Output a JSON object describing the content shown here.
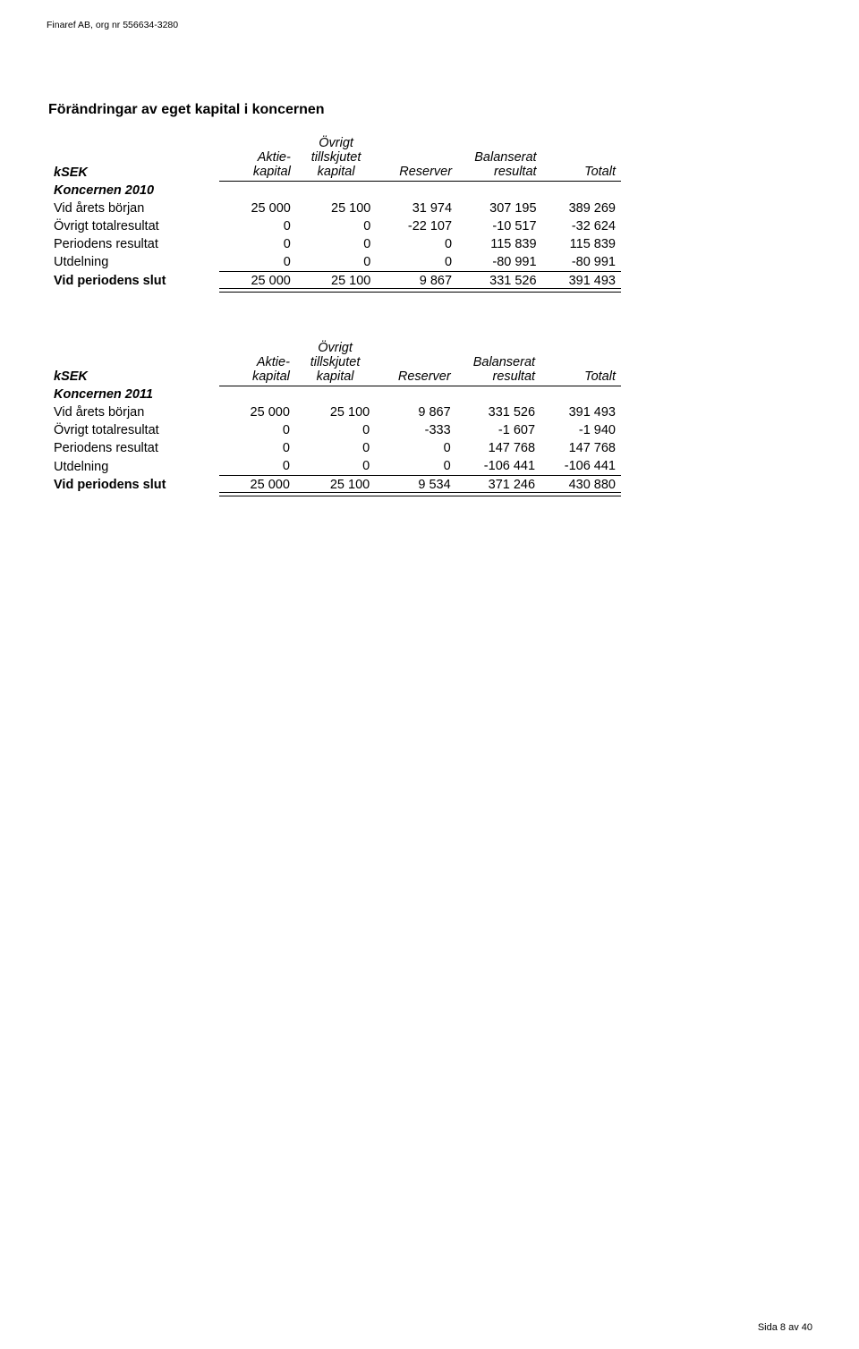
{
  "header": "Finaref AB, org nr 556634-3280",
  "section_title": "Förändringar av eget kapital i koncernen",
  "columns": {
    "ksek": "kSEK",
    "aktie_line1": "Aktie-",
    "aktie_line2": "kapital",
    "ovrigt_line1": "Övrigt",
    "ovrigt_line2": "tillskjutet",
    "ovrigt_line3": "kapital",
    "reserver": "Reserver",
    "balanserat_line1": "Balanserat",
    "balanserat_line2": "resultat",
    "totalt": "Totalt"
  },
  "table2010": {
    "group_label": "Koncernen 2010",
    "rows": [
      {
        "label": "Vid årets början",
        "c1": "25 000",
        "c2": "25 100",
        "c3": "31 974",
        "c4": "307 195",
        "c5": "389 269"
      },
      {
        "label": "Övrigt totalresultat",
        "c1": "0",
        "c2": "0",
        "c3": "-22 107",
        "c4": "-10 517",
        "c5": "-32 624"
      },
      {
        "label": "Periodens resultat",
        "c1": "0",
        "c2": "0",
        "c3": "0",
        "c4": "115 839",
        "c5": "115 839"
      },
      {
        "label": "Utdelning",
        "c1": "0",
        "c2": "0",
        "c3": "0",
        "c4": "-80 991",
        "c5": "-80 991"
      }
    ],
    "total": {
      "label": "Vid periodens slut",
      "c1": "25 000",
      "c2": "25 100",
      "c3": "9 867",
      "c4": "331 526",
      "c5": "391 493"
    }
  },
  "table2011": {
    "group_label": "Koncernen 2011",
    "rows": [
      {
        "label": "Vid årets början",
        "c1": "25 000",
        "c2": "25 100",
        "c3": "9 867",
        "c4": "331 526",
        "c5": "391 493"
      },
      {
        "label": "Övrigt totalresultat",
        "c1": "0",
        "c2": "0",
        "c3": "-333",
        "c4": "-1 607",
        "c5": "-1 940"
      },
      {
        "label": "Periodens resultat",
        "c1": "0",
        "c2": "0",
        "c3": "0",
        "c4": "147 768",
        "c5": "147 768"
      },
      {
        "label": "Utdelning",
        "c1": "0",
        "c2": "0",
        "c3": "0",
        "c4": "-106 441",
        "c5": "-106 441"
      }
    ],
    "total": {
      "label": "Vid periodens slut",
      "c1": "25 000",
      "c2": "25 100",
      "c3": "9 534",
      "c4": "371 246",
      "c5": "430 880"
    }
  },
  "footer": "Sida 8 av 40"
}
